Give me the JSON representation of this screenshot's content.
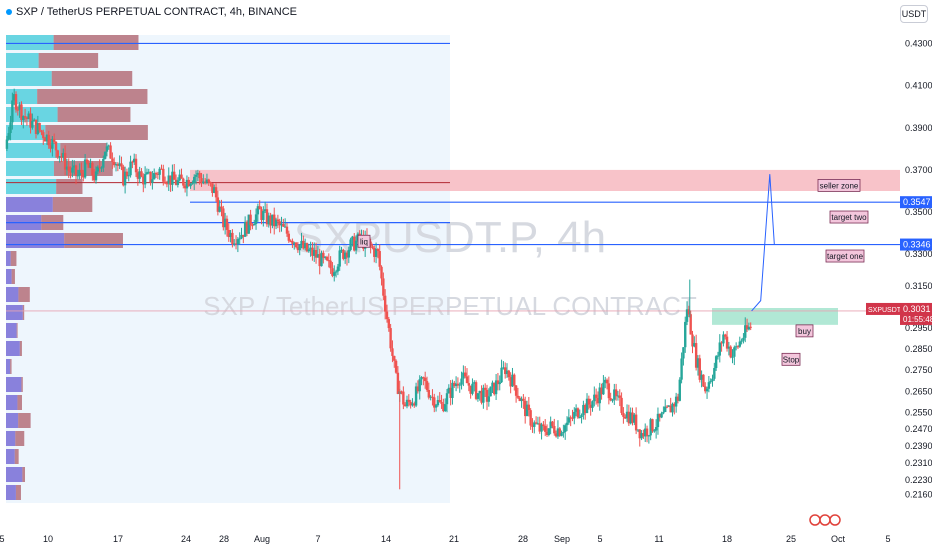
{
  "header": {
    "title": "SXP / TetherUS PERPETUAL CONTRACT, 4h, BINANCE",
    "currency": "USDT"
  },
  "watermark": {
    "symbol_line": "SXPUSDT.P, 4h",
    "name_line": "SXP / TetherUS PERPETUAL CONTRACT"
  },
  "colors": {
    "up": "#26a69a",
    "down": "#ef5350",
    "line_blue": "#2962ff",
    "price_tag": "#d1354a",
    "seller_zone": "#f7b9bf",
    "buy_zone": "#a8e6d0",
    "vp_up": "#5ad2df",
    "vp_down": "#a8525c"
  },
  "chart_data": {
    "type": "candlestick",
    "symbol": "SXPUSDT.P",
    "interval": "4h",
    "y_axis": {
      "min": 0.212,
      "max": 0.434,
      "ticks": [
        0.43,
        0.41,
        0.39,
        0.37,
        0.35,
        0.33,
        0.315,
        0.295,
        0.285,
        0.275,
        0.265,
        0.255,
        0.247,
        0.239,
        0.231,
        0.223,
        0.216
      ]
    },
    "x_axis": {
      "labels": [
        "5",
        "10",
        "17",
        "24",
        "28",
        "Aug",
        "7",
        "14",
        "21",
        "28",
        "Sep",
        "5",
        "11",
        "18",
        "25",
        "Oct",
        "5"
      ]
    },
    "price_levels": [
      {
        "value": 0.43,
        "label": ""
      },
      {
        "value": 0.3547,
        "label": "0.3547"
      },
      {
        "value": 0.3346,
        "label": "0.3346"
      },
      {
        "value": 0.345,
        "label": ""
      },
      {
        "value": 0.364,
        "label": ""
      }
    ],
    "current_price": {
      "symbol": "SXPUSDT.P",
      "value": "0.3031",
      "countdown": "01:55:48",
      "price": 0.3031
    },
    "zones": [
      {
        "name": "seller zone",
        "from": 0.36,
        "to": 0.37
      },
      {
        "name": "buy",
        "from": 0.2965,
        "to": 0.3045
      }
    ],
    "annotations": [
      "seller zone",
      "target two",
      "target one",
      "buy",
      "Stop",
      "liq"
    ],
    "anchors": [
      {
        "d": 0,
        "p": 0.38
      },
      {
        "d": 1,
        "p": 0.404
      },
      {
        "d": 2,
        "p": 0.396
      },
      {
        "d": 3,
        "p": 0.392
      },
      {
        "d": 4,
        "p": 0.388
      },
      {
        "d": 5,
        "p": 0.384
      },
      {
        "d": 6,
        "p": 0.378
      },
      {
        "d": 7,
        "p": 0.37
      },
      {
        "d": 8,
        "p": 0.367
      },
      {
        "d": 9,
        "p": 0.372
      },
      {
        "d": 10,
        "p": 0.366
      },
      {
        "d": 11,
        "p": 0.38
      },
      {
        "d": 12,
        "p": 0.376
      },
      {
        "d": 13,
        "p": 0.366
      },
      {
        "d": 14,
        "p": 0.373
      },
      {
        "d": 15,
        "p": 0.366
      },
      {
        "d": 16,
        "p": 0.366
      },
      {
        "d": 17,
        "p": 0.37
      },
      {
        "d": 18,
        "p": 0.366
      },
      {
        "d": 19,
        "p": 0.364
      },
      {
        "d": 20,
        "p": 0.365
      },
      {
        "d": 21,
        "p": 0.368
      },
      {
        "d": 22,
        "p": 0.364
      },
      {
        "d": 23,
        "p": 0.36
      },
      {
        "d": 24,
        "p": 0.345
      },
      {
        "d": 25,
        "p": 0.338
      },
      {
        "d": 26,
        "p": 0.34
      },
      {
        "d": 27,
        "p": 0.346
      },
      {
        "d": 28,
        "p": 0.35
      },
      {
        "d": 29,
        "p": 0.346
      },
      {
        "d": 30,
        "p": 0.344
      },
      {
        "d": 31,
        "p": 0.34
      },
      {
        "d": 32,
        "p": 0.336
      },
      {
        "d": 33,
        "p": 0.332
      },
      {
        "d": 34,
        "p": 0.33
      },
      {
        "d": 35,
        "p": 0.326
      },
      {
        "d": 36,
        "p": 0.323
      },
      {
        "d": 37,
        "p": 0.33
      },
      {
        "d": 38,
        "p": 0.334
      },
      {
        "d": 39,
        "p": 0.337
      },
      {
        "d": 40,
        "p": 0.334
      },
      {
        "d": 41,
        "p": 0.33
      },
      {
        "d": 42,
        "p": 0.3
      },
      {
        "d": 43,
        "p": 0.27
      },
      {
        "d": 44,
        "p": 0.258
      },
      {
        "d": 45,
        "p": 0.262
      },
      {
        "d": 46,
        "p": 0.27
      },
      {
        "d": 47,
        "p": 0.262
      },
      {
        "d": 48,
        "p": 0.258
      },
      {
        "d": 49,
        "p": 0.265
      },
      {
        "d": 50,
        "p": 0.272
      },
      {
        "d": 51,
        "p": 0.268
      },
      {
        "d": 52,
        "p": 0.264
      },
      {
        "d": 53,
        "p": 0.262
      },
      {
        "d": 54,
        "p": 0.268
      },
      {
        "d": 55,
        "p": 0.276
      },
      {
        "d": 56,
        "p": 0.268
      },
      {
        "d": 57,
        "p": 0.258
      },
      {
        "d": 58,
        "p": 0.25
      },
      {
        "d": 59,
        "p": 0.246
      },
      {
        "d": 60,
        "p": 0.248
      },
      {
        "d": 61,
        "p": 0.247
      },
      {
        "d": 62,
        "p": 0.25
      },
      {
        "d": 63,
        "p": 0.256
      },
      {
        "d": 64,
        "p": 0.258
      },
      {
        "d": 65,
        "p": 0.262
      },
      {
        "d": 66,
        "p": 0.268
      },
      {
        "d": 67,
        "p": 0.262
      },
      {
        "d": 68,
        "p": 0.256
      },
      {
        "d": 69,
        "p": 0.252
      },
      {
        "d": 70,
        "p": 0.245
      },
      {
        "d": 71,
        "p": 0.248
      },
      {
        "d": 72,
        "p": 0.251
      },
      {
        "d": 73,
        "p": 0.256
      },
      {
        "d": 74,
        "p": 0.262
      },
      {
        "d": 75,
        "p": 0.305
      },
      {
        "d": 76,
        "p": 0.28
      },
      {
        "d": 77,
        "p": 0.266
      },
      {
        "d": 78,
        "p": 0.276
      },
      {
        "d": 79,
        "p": 0.292
      },
      {
        "d": 80,
        "p": 0.282
      },
      {
        "d": 81,
        "p": 0.29
      },
      {
        "d": 82,
        "p": 0.296
      }
    ],
    "projection": [
      {
        "d": 82,
        "p": 0.3031
      },
      {
        "d": 83,
        "p": 0.308
      },
      {
        "d": 84,
        "p": 0.368
      },
      {
        "d": 84.5,
        "p": 0.3346
      }
    ]
  }
}
